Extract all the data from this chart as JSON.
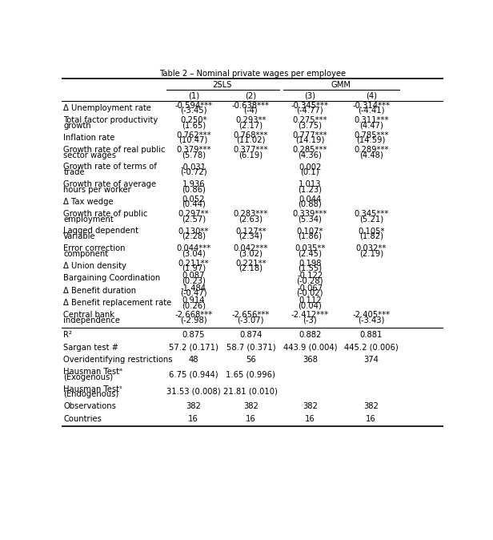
{
  "title": "Table 2 – Nominal private wages per employee",
  "rows": [
    {
      "label": "Δ Unemployment rate",
      "label2": "",
      "values": [
        "-0.594***",
        "-0.638***",
        "-0.345***",
        "-0.314***"
      ],
      "tstats": [
        "(-3.45)",
        "(-4)",
        "(-4.77)",
        "(-4.41)"
      ]
    },
    {
      "label": "Total factor productivity",
      "label2": "growth",
      "values": [
        "0.250*",
        "0.293**",
        "0.275***",
        "0.311***"
      ],
      "tstats": [
        "(1.65)",
        "(2.17)",
        "(3.75)",
        "(4.47)"
      ]
    },
    {
      "label": "Inflation rate",
      "label2": "",
      "values": [
        "0.762***",
        "0.768***",
        "0.777***",
        "0.785***"
      ],
      "tstats": [
        "(10.47)",
        "(11.02)",
        "(14.19)",
        "(14.59)"
      ]
    },
    {
      "label": "Growth rate of real public",
      "label2": "sector wages",
      "values": [
        "0.379***",
        "0.377***",
        "0.285***",
        "0.289***"
      ],
      "tstats": [
        "(5.78)",
        "(6.19)",
        "(4.36)",
        "(4.48)"
      ]
    },
    {
      "label": "Growth rate of terms of",
      "label2": "trade",
      "values": [
        "-0.031",
        "",
        "0.002",
        ""
      ],
      "tstats": [
        "(-0.72)",
        "",
        "(0.1)",
        ""
      ]
    },
    {
      "label": "Growth rate of average",
      "label2": "hours per worker",
      "values": [
        "1.936",
        "",
        "1.013",
        ""
      ],
      "tstats": [
        "(0.86)",
        "",
        "(1.23)",
        ""
      ]
    },
    {
      "label": "Δ Tax wedge",
      "label2": "",
      "values": [
        "0.052",
        "",
        "0.044",
        ""
      ],
      "tstats": [
        "(0.44)",
        "",
        "(0.88)",
        ""
      ]
    },
    {
      "label": "Growth rate of public",
      "label2": "employment",
      "values": [
        "0.297**",
        "0.283***",
        "0.339***",
        "0.345***"
      ],
      "tstats": [
        "(2.57)",
        "(2.63)",
        "(5.34)",
        "(5.21)"
      ]
    },
    {
      "label": "Lagged dependent",
      "label2": "Variable",
      "values": [
        "0.130**",
        "0.127**",
        "0.107*",
        "0.105*"
      ],
      "tstats": [
        "(2.28)",
        "(2.34)",
        "(1.86)",
        "(1.82)"
      ]
    },
    {
      "label": "Error correction",
      "label2": "component",
      "values": [
        "0.044***",
        "0.042***",
        "0.035**",
        "0.032**"
      ],
      "tstats": [
        "(3.04)",
        "(3.02)",
        "(2.45)",
        "(2.19)"
      ]
    },
    {
      "label": "Δ Union density",
      "label2": "",
      "values": [
        "0.211**",
        "0.221**",
        "0.198",
        ""
      ],
      "tstats": [
        "(1.97)",
        "(2.18)",
        "(1.55)",
        ""
      ]
    },
    {
      "label": "Bargaining Coordination",
      "label2": "",
      "values": [
        "0.087",
        "",
        "-0.122",
        ""
      ],
      "tstats": [
        "(0.23)",
        "",
        "(-0.28)",
        ""
      ]
    },
    {
      "label": "Δ Benefit duration",
      "label2": "",
      "values": [
        "-1.484",
        "",
        "-0.067",
        ""
      ],
      "tstats": [
        "(-0.47)",
        "",
        "(-0.02)",
        ""
      ]
    },
    {
      "label": "Δ Benefit replacement rate",
      "label2": "",
      "values": [
        "0.914",
        "",
        "0.112",
        ""
      ],
      "tstats": [
        "(0.26)",
        "",
        "(0.04)",
        ""
      ]
    },
    {
      "label": "Central bank",
      "label2": "independence",
      "values": [
        "-2.668***",
        "-2.656***",
        "-2.412***",
        "-2.405***"
      ],
      "tstats": [
        "(-2.98)",
        "(-3.07)",
        "(-3)",
        "(-3.43)"
      ]
    }
  ],
  "stats_rows": [
    {
      "label": "R²",
      "label2": "",
      "values": [
        "0.875",
        "0.874",
        "0.882",
        "0.881"
      ]
    },
    {
      "label": "Sargan test #",
      "label2": "",
      "values": [
        "57.2 (0.171)",
        "58.7 (0.371)",
        "443.9 (0.004)",
        "445.2 (0.006)"
      ]
    },
    {
      "label": "Overidentifying restrictions",
      "label2": "",
      "values": [
        "48",
        "56",
        "368",
        "374"
      ]
    },
    {
      "label": "Hausman Testᵃ",
      "label2": "(Exogenous)",
      "values": [
        "6.75 (0.944)",
        "1.65 (0.996)",
        "",
        ""
      ]
    },
    {
      "label": "Hausman Testˢ",
      "label2": "(Endogenous)",
      "values": [
        "31.53 (0.008)",
        "21.81 (0.010)",
        "",
        ""
      ]
    },
    {
      "label": "Observations",
      "label2": "",
      "values": [
        "382",
        "382",
        "382",
        "382"
      ]
    },
    {
      "label": "Countries",
      "label2": "",
      "values": [
        "16",
        "16",
        "16",
        "16"
      ]
    }
  ],
  "bg_color": "#ffffff",
  "text_color": "#000000",
  "font_size": 7.2
}
